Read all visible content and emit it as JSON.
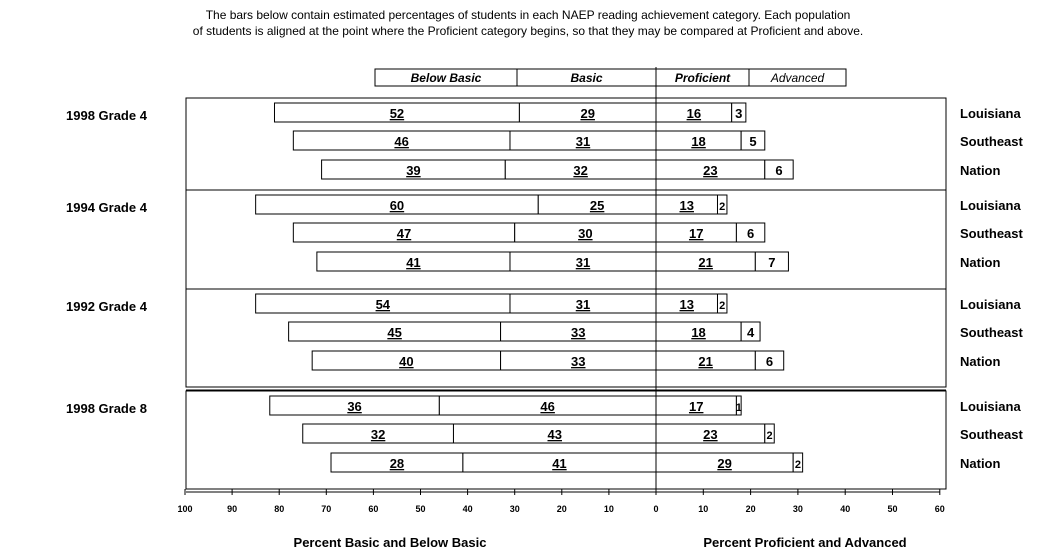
{
  "intro": {
    "line1": "The bars below contain estimated percentages of students in each NAEP reading achievement category.  Each population",
    "line2": "of students is aligned at the point where the Proficient category begins, so that they may be compared at Proficient and above."
  },
  "chart_data": {
    "type": "bar",
    "subtype": "diverging-stacked-horizontal",
    "legend": [
      "Below Basic",
      "Basic",
      "Proficient",
      "Advanced"
    ],
    "legend_placement": "top-center",
    "xlabel_left": "Percent Basic and Below Basic",
    "xlabel_right": "Percent Proficient and Advanced",
    "x_left_ticks": [
      "100",
      "90",
      "80",
      "70",
      "60",
      "50",
      "40",
      "30",
      "20",
      "10",
      "0"
    ],
    "x_right_ticks": [
      "10",
      "20",
      "30",
      "40",
      "50",
      "60"
    ],
    "x_left_range": [
      0,
      100
    ],
    "x_right_range": [
      0,
      60
    ],
    "bar_colors": {
      "fill": "#ffffff",
      "stroke": "#000000"
    },
    "groups": [
      {
        "name": "1998 Grade 4",
        "rows": [
          {
            "population": "Louisiana",
            "below_basic": 52,
            "basic": 29,
            "proficient": 16,
            "advanced": 3
          },
          {
            "population": "Southeast",
            "below_basic": 46,
            "basic": 31,
            "proficient": 18,
            "advanced": 5
          },
          {
            "population": "Nation",
            "below_basic": 39,
            "basic": 32,
            "proficient": 23,
            "advanced": 6
          }
        ]
      },
      {
        "name": "1994 Grade 4",
        "rows": [
          {
            "population": "Louisiana",
            "below_basic": 60,
            "basic": 25,
            "proficient": 13,
            "advanced": 2
          },
          {
            "population": "Southeast",
            "below_basic": 47,
            "basic": 30,
            "proficient": 17,
            "advanced": 6
          },
          {
            "population": "Nation",
            "below_basic": 41,
            "basic": 31,
            "proficient": 21,
            "advanced": 7
          }
        ]
      },
      {
        "name": "1992 Grade 4",
        "rows": [
          {
            "population": "Louisiana",
            "below_basic": 54,
            "basic": 31,
            "proficient": 13,
            "advanced": 2
          },
          {
            "population": "Southeast",
            "below_basic": 45,
            "basic": 33,
            "proficient": 18,
            "advanced": 4
          },
          {
            "population": "Nation",
            "below_basic": 40,
            "basic": 33,
            "proficient": 21,
            "advanced": 6
          }
        ]
      },
      {
        "name": "1998 Grade 8",
        "rows": [
          {
            "population": "Louisiana",
            "below_basic": 36,
            "basic": 46,
            "proficient": 17,
            "advanced": 1
          },
          {
            "population": "Southeast",
            "below_basic": 32,
            "basic": 43,
            "proficient": 23,
            "advanced": 2
          },
          {
            "population": "Nation",
            "below_basic": 28,
            "basic": 41,
            "proficient": 29,
            "advanced": 2
          }
        ]
      }
    ]
  }
}
